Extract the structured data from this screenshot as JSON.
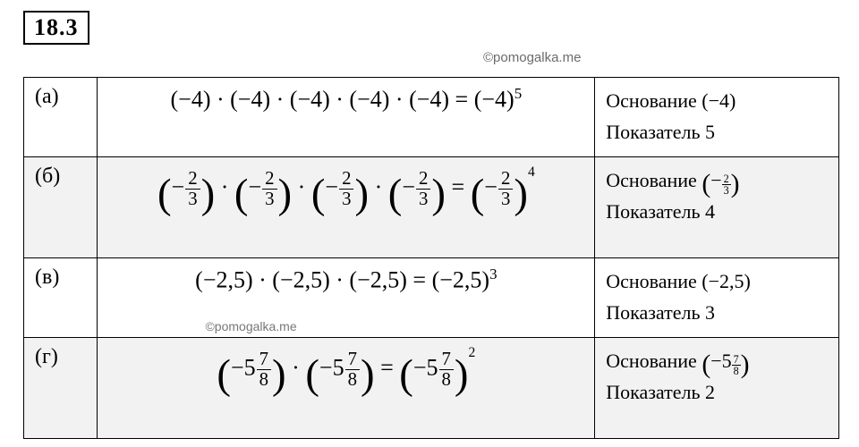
{
  "heading": "18.3",
  "watermark_top": "©pomogalka.me",
  "watermark_mid": "©pomogalka.me",
  "rows": [
    {
      "label": "(а)",
      "expr_html": "(−4) · (−4) · (−4) · (−4) · (−4) = (−4)<sup>5</sup>",
      "base_label": "Основание (−4)",
      "exp_label": "Показатель 5",
      "shade": false,
      "tall": false,
      "wm": false
    },
    {
      "label": "(б)",
      "expr_html": "<span class='paren-big'>(</span>−<span class='frac'><span class='n'>2</span><span class='d'>3</span></span><span class='paren-big'>)</span> · <span class='paren-big'>(</span>−<span class='frac'><span class='n'>2</span><span class='d'>3</span></span><span class='paren-big'>)</span> · <span class='paren-big'>(</span>−<span class='frac'><span class='n'>2</span><span class='d'>3</span></span><span class='paren-big'>)</span> · <span class='paren-big'>(</span>−<span class='frac'><span class='n'>2</span><span class='d'>3</span></span><span class='paren-big'>)</span> = <span class='paren-big'>(</span>−<span class='frac'><span class='n'>2</span><span class='d'>3</span></span><span class='paren-big'>)</span><sup style='font-size:0.6em;vertical-align:1.3em;'>4</sup>",
      "base_html": "Основание <span class='paren-sm'>(</span>−<span class='sfrac'><span class='sn'>2</span><span class='sd'>3</span></span><span class='paren-sm'>)</span>",
      "exp_label": "Показатель 4",
      "shade": true,
      "tall": true,
      "wm": false
    },
    {
      "label": "(в)",
      "expr_html": "(−2,5) · (−2,5) · (−2,5) = (−2,5)<sup>3</sup>",
      "base_label": "Основание (−2,5)",
      "exp_label": "Показатель 3",
      "shade": false,
      "tall": false,
      "wm": true
    },
    {
      "label": "(г)",
      "expr_html": "<span class='paren-big'>(</span>−5<span class='frac'><span class='n'>7</span><span class='d'>8</span></span><span class='paren-big'>)</span> · <span class='paren-big'>(</span>−5<span class='frac'><span class='n'>7</span><span class='d'>8</span></span><span class='paren-big'>)</span> = <span class='paren-big'>(</span>−5<span class='frac'><span class='n'>7</span><span class='d'>8</span></span><span class='paren-big'>)</span><sup style='font-size:0.6em;vertical-align:1.3em;'>2</sup>",
      "base_html": "Основание <span class='paren-sm'>(</span>−5<span class='sfrac'><span class='sn'>7</span><span class='sd'>8</span></span><span class='paren-sm'>)</span>",
      "exp_label": "Показатель 2",
      "shade": true,
      "tall": true,
      "wm": false
    }
  ]
}
